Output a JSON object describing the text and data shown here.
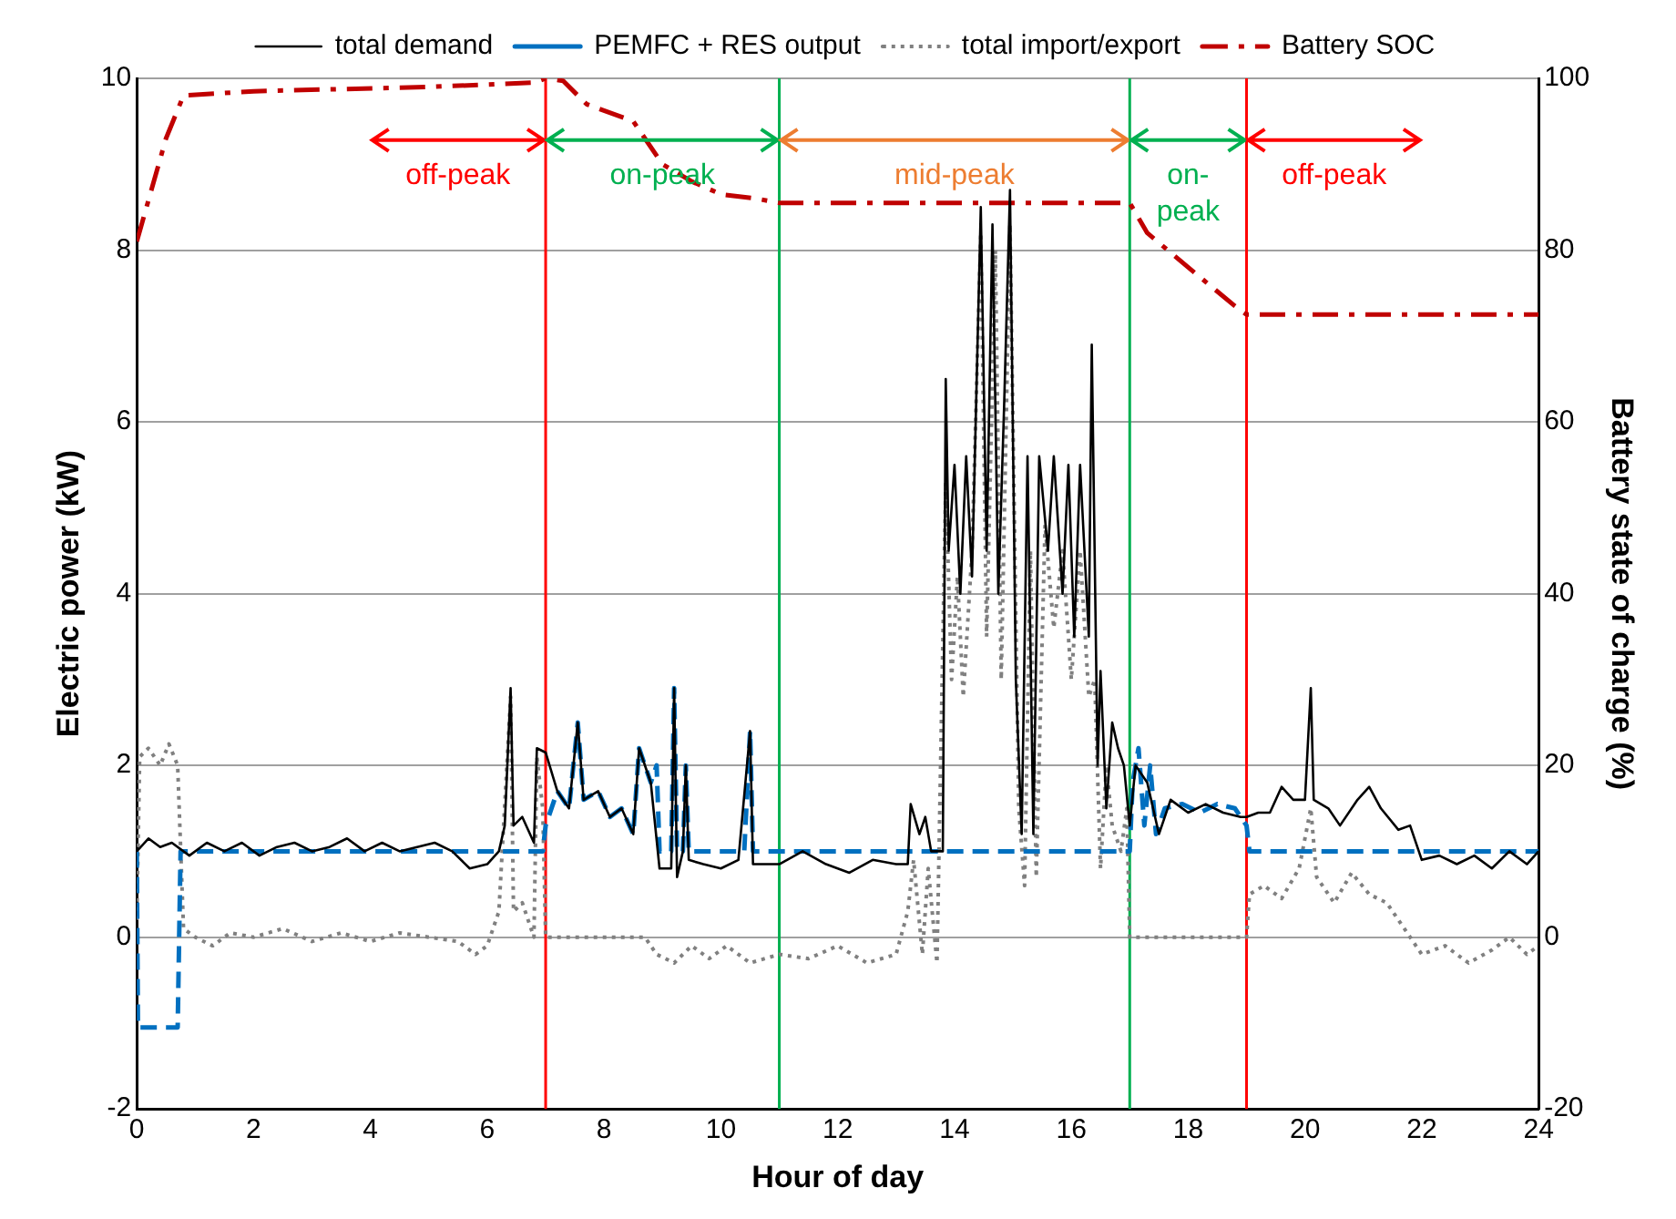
{
  "chart_data": {
    "type": "line",
    "xlabel": "Hour of day",
    "ylabel": "Electric power (kW)",
    "y2label": "Battery state of charge (%)",
    "xlim": [
      0,
      24
    ],
    "xticks": [
      0,
      2,
      4,
      6,
      8,
      10,
      12,
      14,
      16,
      18,
      20,
      22,
      24
    ],
    "ylim": [
      -2,
      10
    ],
    "yticks": [
      -2,
      0,
      2,
      4,
      6,
      8,
      10
    ],
    "y2lim": [
      -20,
      100
    ],
    "y2ticks": [
      -20,
      0,
      20,
      40,
      60,
      80,
      100
    ],
    "grid": "y",
    "legend": "top",
    "marker": "none",
    "series": [
      {
        "name": "total demand",
        "color": "#000000",
        "line_style": "solid",
        "x": [
          0,
          0.2,
          0.4,
          0.6,
          0.9,
          1.2,
          1.5,
          1.8,
          2.1,
          2.4,
          2.7,
          3,
          3.3,
          3.6,
          3.9,
          4.2,
          4.5,
          4.8,
          5.1,
          5.4,
          5.7,
          6,
          6.2,
          6.3,
          6.4,
          6.45,
          6.6,
          6.8,
          6.85,
          7,
          7.2,
          7.4,
          7.55,
          7.65,
          7.9,
          8.1,
          8.3,
          8.5,
          8.6,
          8.8,
          8.95,
          9.15,
          9.2,
          9.25,
          9.35,
          9.4,
          9.45,
          9.7,
          10,
          10.3,
          10.5,
          10.55,
          11,
          11.4,
          11.8,
          12.2,
          12.6,
          13,
          13.2,
          13.25,
          13.4,
          13.5,
          13.6,
          13.8,
          13.85,
          13.9,
          14,
          14.1,
          14.2,
          14.3,
          14.45,
          14.55,
          14.65,
          14.75,
          14.85,
          14.95,
          15.05,
          15.15,
          15.25,
          15.35,
          15.45,
          15.6,
          15.7,
          15.85,
          15.95,
          16.05,
          16.15,
          16.3,
          16.35,
          16.45,
          16.5,
          16.6,
          16.7,
          16.8,
          16.9,
          17,
          17.1,
          17.3,
          17.5,
          17.7,
          18,
          18.3,
          18.6,
          18.9,
          19,
          19.2,
          19.4,
          19.6,
          19.8,
          20,
          20.1,
          20.15,
          20.4,
          20.6,
          20.9,
          21.1,
          21.3,
          21.6,
          21.8,
          22,
          22.3,
          22.6,
          22.9,
          23.2,
          23.5,
          23.8,
          24
        ],
        "values": [
          1,
          1.15,
          1.05,
          1.1,
          0.95,
          1.1,
          1,
          1.1,
          0.95,
          1.05,
          1.1,
          1,
          1.05,
          1.15,
          1,
          1.1,
          1,
          1.05,
          1.1,
          1,
          0.8,
          0.85,
          1,
          1.3,
          2.9,
          1.3,
          1.4,
          1.1,
          2.2,
          2.15,
          1.7,
          1.5,
          2.5,
          1.6,
          1.7,
          1.4,
          1.5,
          1.2,
          2.2,
          1.8,
          0.8,
          0.8,
          2.9,
          0.7,
          1,
          2,
          0.9,
          0.85,
          0.8,
          0.9,
          2.4,
          0.85,
          0.85,
          1,
          0.85,
          0.75,
          0.9,
          0.85,
          0.85,
          1.55,
          1.2,
          1.4,
          1,
          1,
          6.5,
          4.5,
          5.5,
          4,
          5.6,
          4.2,
          8.5,
          4.5,
          8.3,
          4,
          6.2,
          8.7,
          3,
          1.2,
          5.6,
          1.2,
          5.6,
          4.5,
          5.6,
          4,
          5.5,
          3.5,
          5.5,
          3.5,
          6.9,
          2,
          3.1,
          1.5,
          2.5,
          2.2,
          2,
          1.3,
          2,
          1.8,
          1.2,
          1.6,
          1.45,
          1.55,
          1.45,
          1.4,
          1.4,
          1.45,
          1.45,
          1.75,
          1.6,
          1.6,
          2.9,
          1.6,
          1.5,
          1.3,
          1.6,
          1.75,
          1.5,
          1.25,
          1.3,
          0.9,
          0.95,
          0.85,
          0.95,
          0.8,
          1,
          0.85,
          1
        ]
      },
      {
        "name": "PEMFC + RES output",
        "color": "#0070c0",
        "line_style": "dashed",
        "x": [
          0,
          0.02,
          0.7,
          0.75,
          6.95,
          7,
          7.2,
          7.4,
          7.55,
          7.65,
          7.9,
          8.1,
          8.3,
          8.5,
          8.6,
          8.8,
          8.9,
          8.95,
          9.15,
          9.2,
          9.25,
          9.35,
          9.4,
          9.45,
          10.4,
          10.5,
          10.55,
          17,
          17.05,
          17.15,
          17.25,
          17.35,
          17.45,
          17.6,
          17.9,
          18.2,
          18.5,
          18.8,
          19,
          19.05,
          24
        ],
        "values": [
          1,
          -1.05,
          -1.05,
          1,
          1,
          1.3,
          1.7,
          1.5,
          2.5,
          1.6,
          1.7,
          1.4,
          1.5,
          1.2,
          2.2,
          1.8,
          2,
          1,
          1,
          2.9,
          1,
          1,
          2,
          1,
          1,
          2.4,
          1,
          1,
          1.8,
          2.2,
          1.3,
          2,
          1.2,
          1.5,
          1.55,
          1.45,
          1.55,
          1.5,
          1.3,
          1,
          1
        ]
      },
      {
        "name": "total import/export",
        "color": "#808080",
        "line_style": "dotted",
        "x": [
          0,
          0.05,
          0.2,
          0.4,
          0.55,
          0.7,
          0.8,
          1,
          1.3,
          1.6,
          2,
          2.5,
          3,
          3.5,
          4,
          4.5,
          5,
          5.5,
          5.8,
          6,
          6.2,
          6.4,
          6.45,
          6.6,
          6.8,
          6.85,
          6.95,
          7,
          8.7,
          8.9,
          9.2,
          9.5,
          9.8,
          10.1,
          10.5,
          11,
          11.5,
          12,
          12.5,
          13,
          13.2,
          13.3,
          13.45,
          13.55,
          13.7,
          13.85,
          13.95,
          14.05,
          14.15,
          14.3,
          14.45,
          14.55,
          14.7,
          14.8,
          14.95,
          15.1,
          15.2,
          15.3,
          15.4,
          15.55,
          15.7,
          15.85,
          16,
          16.15,
          16.3,
          16.4,
          16.5,
          16.6,
          16.7,
          16.85,
          16.95,
          17,
          19,
          19.05,
          19.3,
          19.6,
          19.9,
          20.1,
          20.2,
          20.5,
          20.8,
          21.1,
          21.4,
          21.7,
          22,
          22.4,
          22.8,
          23.2,
          23.5,
          23.8,
          24
        ],
        "values": [
          0.2,
          2.1,
          2.2,
          2,
          2.25,
          2,
          0.1,
          0,
          -0.1,
          0.05,
          0,
          0.1,
          -0.05,
          0.05,
          -0.05,
          0.05,
          0,
          -0.05,
          -0.2,
          -0.1,
          0.3,
          2.8,
          0.3,
          0.4,
          0,
          2.1,
          1.5,
          0,
          0,
          -0.2,
          -0.3,
          -0.1,
          -0.25,
          -0.1,
          -0.3,
          -0.2,
          -0.25,
          -0.1,
          -0.3,
          -0.2,
          0.3,
          0.9,
          -0.2,
          0.8,
          -0.3,
          5.3,
          3,
          4.2,
          2.8,
          4.5,
          8.2,
          3.5,
          8,
          3,
          8.3,
          1.5,
          0.6,
          4.5,
          0.7,
          4.8,
          3.6,
          4.5,
          3,
          4.5,
          2.8,
          3,
          0.8,
          2,
          1.3,
          1,
          1.5,
          0,
          0,
          0.5,
          0.6,
          0.45,
          0.8,
          1.5,
          0.7,
          0.4,
          0.75,
          0.5,
          0.4,
          0.1,
          -0.2,
          -0.1,
          -0.3,
          -0.15,
          0,
          -0.2,
          -0.1
        ]
      },
      {
        "name": "Battery SOC",
        "color": "#c00000",
        "line_style": "dashed",
        "axis": "y2",
        "x": [
          0,
          0.5,
          0.8,
          2,
          5,
          6.8,
          7,
          7.3,
          7.7,
          8.5,
          9,
          9.5,
          10,
          10.6,
          11,
          17,
          17.3,
          18,
          18.8,
          19,
          24
        ],
        "values": [
          81,
          93,
          98,
          98.5,
          99,
          99.5,
          100,
          99.7,
          97,
          95,
          90,
          88,
          86.5,
          86,
          85.5,
          85.5,
          82,
          78,
          73.5,
          72.5,
          72.5
        ]
      }
    ],
    "ref_lines": [
      {
        "axis": "x",
        "value": 7,
        "color": "#ff0000"
      },
      {
        "axis": "x",
        "value": 11,
        "color": "#00b050"
      },
      {
        "axis": "x",
        "value": 17,
        "color": "#00b050"
      },
      {
        "axis": "x",
        "value": 19,
        "color": "#ff0000"
      }
    ],
    "annotations": [
      "off-peak",
      "on-peak",
      "mid-peak",
      "on-peak",
      "off-peak"
    ]
  }
}
